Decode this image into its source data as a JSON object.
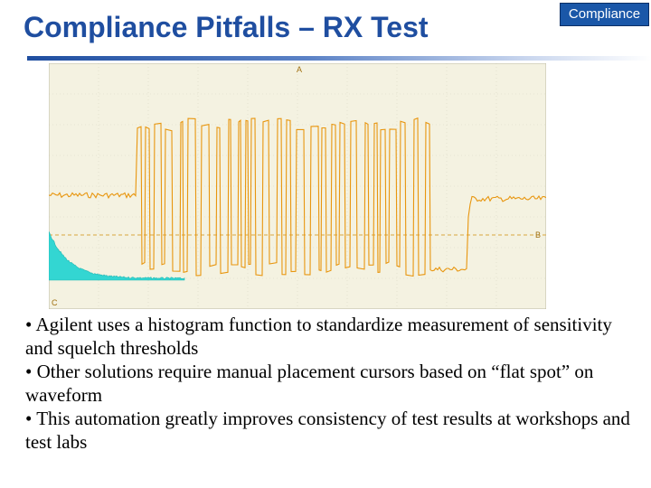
{
  "slide": {
    "title": "Compliance Pitfalls – RX Test",
    "badge": "Compliance",
    "bullets": [
      "• Agilent uses a histogram function to standardize measurement of sensitivity and squelch thresholds",
      "• Other solutions require manual placement cursors based on “flat spot” on waveform",
      "• This automation greatly improves consistency of test results at workshops and test labs"
    ]
  },
  "scope": {
    "channel_labels": [
      "A",
      "B",
      "C"
    ],
    "trace_color": "#e8960f",
    "histogram_color": "#33d6d2",
    "grid_color": "#d8d6c4"
  }
}
